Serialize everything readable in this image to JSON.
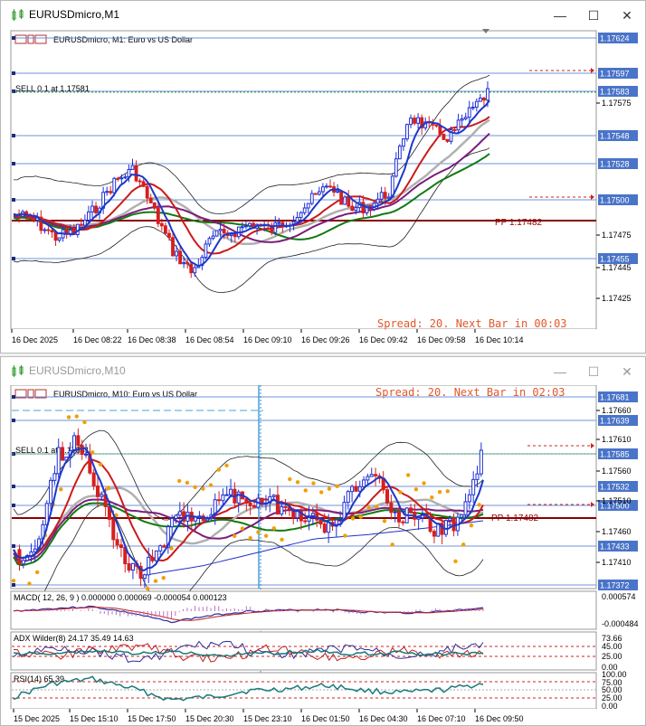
{
  "window1": {
    "title": "EURUSDmicro,M1",
    "header": "EURUSDmicro, M1:  Euro vs US Dollar",
    "trade_label": "SELL 0.1 at 1.17581",
    "pp_label": "PP 1.17482",
    "status": "Spread: 20. Next Bar in 00:03",
    "price_tags": [
      "1.17624",
      "1.17597",
      "1.17583",
      "1.17548",
      "1.17528",
      "1.17500",
      "1.17455"
    ],
    "scale_labels": [
      "1.17575",
      "1.17475",
      "1.17445",
      "1.17425"
    ],
    "time_labels": [
      "16 Dec 2025",
      "16 Dec 08:22",
      "16 Dec 08:38",
      "16 Dec 08:54",
      "16 Dec 09:10",
      "16 Dec 09:26",
      "16 Dec 09:42",
      "16 Dec 09:58",
      "16 Dec 10:14"
    ]
  },
  "window2": {
    "title": "EURUSDmicro,M10",
    "header": "EURUSDmicro, M10:  Euro vs US Dollar",
    "trade_label": "SELL 0.1 at 1.17581",
    "pp_label": "PP 1.17482",
    "status": "Spread: 20. Next Bar in 02:03",
    "price_tags": [
      "1.17681",
      "1.17639",
      "1.17585",
      "1.17532",
      "1.17500",
      "1.17433",
      "1.17372"
    ],
    "scale_labels": [
      "1.17660",
      "1.17610",
      "1.17560",
      "1.17510",
      "1.17460",
      "1.17410"
    ],
    "macd_label": "MACD( 12, 26, 9 ) 0.000000 0.000069 -0.000054 0.000123",
    "macd_scale": [
      "0.000574",
      "-0.000484"
    ],
    "adx_label": "ADX Wilder(8) 24.17 35.49 14.63",
    "adx_scale": [
      "73.66",
      "45.00",
      "25.00",
      "0.00"
    ],
    "rsi_label": "RSI(14) 65.39",
    "rsi_scale": [
      "100.00",
      "75.00",
      "50.00",
      "25.00",
      "0.00"
    ],
    "time_labels": [
      "15 Dec 2025",
      "15 Dec 15:10",
      "15 Dec 17:50",
      "15 Dec 20:30",
      "15 Dec 23:10",
      "16 Dec 01:50",
      "16 Dec 04:30",
      "16 Dec 07:10",
      "16 Dec 09:50"
    ]
  },
  "colors": {
    "tag_blue": "#4a74c9",
    "pp_red": "#8b0000",
    "status_orange": "#e2572a",
    "bull": "#1f2fd6",
    "bear": "#d61f1f"
  }
}
